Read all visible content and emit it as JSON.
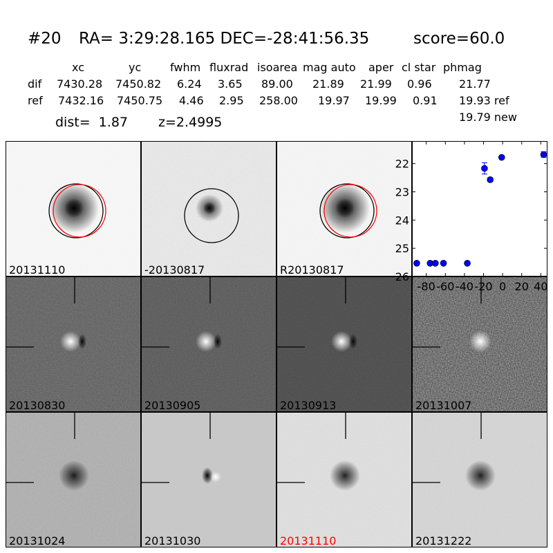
{
  "header": {
    "id": "#20",
    "coords": "RA= 3:29:28.165 DEC=-28:41:56.35",
    "score": "score=60.0",
    "columns": [
      "xc",
      "yc",
      "fwhm",
      "fluxrad",
      "isoarea",
      "mag auto",
      "aper",
      "cl star",
      "phmag"
    ],
    "rows": [
      {
        "label": "dif",
        "values": [
          "7430.28",
          "7450.82",
          "6.24",
          "3.65",
          "89.00",
          "21.89",
          "21.99",
          "0.96",
          "21.77"
        ]
      },
      {
        "label": "ref",
        "values": [
          "7432.16",
          "7450.75",
          "4.46",
          "2.95",
          "258.00",
          "19.97",
          "19.99",
          "0.91",
          "19.93 ref"
        ]
      }
    ],
    "phmag_new": "19.79 new",
    "dist": "dist=  1.87",
    "z": "z=2.4995"
  },
  "stamps": [
    {
      "label": "20131110",
      "bg": "#f7f7f7",
      "type": "star",
      "noise": 0.02,
      "circles": [
        "black",
        "red"
      ]
    },
    {
      "label": "-20130817",
      "bg": "#ececec",
      "type": "star-small",
      "noise": 0.08,
      "circles": [
        "black"
      ]
    },
    {
      "label": "R20130817",
      "bg": "#f5f5f5",
      "type": "star",
      "noise": 0.02,
      "circles": [
        "black",
        "red"
      ]
    },
    {
      "label": "20130830",
      "bg": "#595959",
      "type": "dipole",
      "noise": 0.12,
      "crosshair": true
    },
    {
      "label": "20130905",
      "bg": "#555555",
      "type": "dipole",
      "noise": 0.08,
      "crosshair": true
    },
    {
      "label": "20130913",
      "bg": "#4a4a4a",
      "type": "dipole",
      "noise": 0.05,
      "crosshair": true
    },
    {
      "label": "20131007",
      "bg": "#3c3c3c",
      "type": "bright",
      "noise": 0.3,
      "crosshair": true
    },
    {
      "label": "20131024",
      "bg": "#a8a8a8",
      "type": "dark",
      "noise": 0.3,
      "crosshair": true
    },
    {
      "label": "20131030",
      "bg": "#c9c9c9",
      "type": "dipole-inv",
      "noise": 0.05,
      "crosshair": true
    },
    {
      "label": "20131110",
      "bg": "#e2e2e2",
      "type": "dark",
      "noise": 0.08,
      "crosshair": true,
      "label_color": "#ff0000"
    },
    {
      "label": "20131222",
      "bg": "#d9d9d9",
      "type": "dark",
      "noise": 0.12,
      "crosshair": true
    }
  ],
  "chart_data": {
    "type": "scatter",
    "title": "",
    "xlabel": "",
    "ylabel": "",
    "xlim": [
      -95,
      47
    ],
    "ylim": [
      26,
      21.2
    ],
    "y_inverted": true,
    "xticks": [
      -80,
      -60,
      -40,
      -20,
      0,
      20,
      40
    ],
    "yticks": [
      22,
      23,
      24,
      25,
      26
    ],
    "grid": false,
    "marker_color": "#0000ff",
    "points": [
      {
        "x": -90,
        "y": 25.53,
        "err": 0.05
      },
      {
        "x": -76,
        "y": 25.53,
        "err": 0.05
      },
      {
        "x": -70.5,
        "y": 25.53,
        "err": 0.05
      },
      {
        "x": -62,
        "y": 25.53,
        "err": 0.05
      },
      {
        "x": -37,
        "y": 25.53,
        "err": 0.05
      },
      {
        "x": -19,
        "y": 22.17,
        "err": 0.2
      },
      {
        "x": -13,
        "y": 22.57,
        "err": 0.07
      },
      {
        "x": -1,
        "y": 21.78,
        "err": 0.03
      },
      {
        "x": 43,
        "y": 21.68,
        "err": 0.1
      }
    ]
  }
}
